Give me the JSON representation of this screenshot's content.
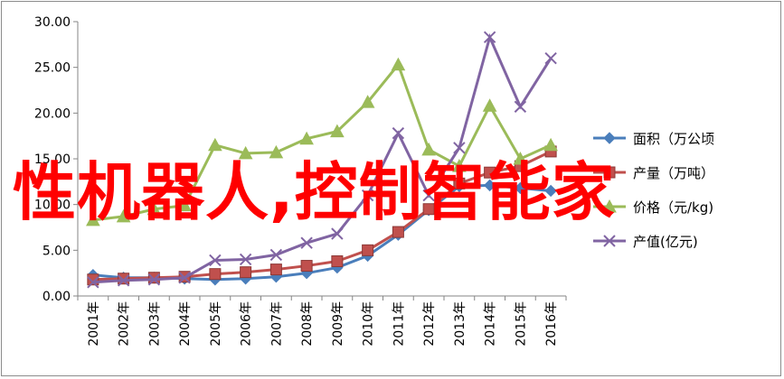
{
  "chart_data": {
    "type": "line",
    "categories": [
      "2001年",
      "2002年",
      "2003年",
      "2004年",
      "2005年",
      "2006年",
      "2007年",
      "2008年",
      "2009年",
      "2010年",
      "2011年",
      "2012年",
      "2013年",
      "2014年",
      "2015年",
      "2016年"
    ],
    "ylim": [
      0,
      30
    ],
    "yticks": [
      "0.00",
      "5.00",
      "10.00",
      "15.00",
      "20.00",
      "25.00",
      "30.00"
    ],
    "series": [
      {
        "name": "面积（万公顷",
        "color": "#4a7ebb",
        "marker": "diamond",
        "values": [
          2.3,
          2.0,
          2.0,
          1.9,
          1.8,
          1.9,
          2.1,
          2.5,
          3.1,
          4.4,
          6.7,
          9.4,
          12.0,
          12.1,
          11.8,
          11.5
        ]
      },
      {
        "name": "产量（万吨）",
        "color": "#c0504d",
        "marker": "square",
        "values": [
          1.8,
          1.9,
          2.0,
          2.1,
          2.4,
          2.6,
          2.9,
          3.3,
          3.8,
          5.0,
          7.0,
          9.5,
          12.3,
          13.5,
          14.2,
          15.8
        ]
      },
      {
        "name": "价格（元/kg)",
        "color": "#9bbb59",
        "marker": "triangle",
        "values": [
          8.3,
          8.7,
          9.5,
          9.9,
          16.5,
          15.6,
          15.7,
          17.2,
          18.0,
          21.2,
          25.3,
          16.0,
          14.2,
          20.8,
          15.0,
          16.5
        ]
      },
      {
        "name": "产值(亿元)",
        "color": "#8064a2",
        "marker": "x",
        "values": [
          1.5,
          1.7,
          1.8,
          2.0,
          3.9,
          4.0,
          4.5,
          5.8,
          6.8,
          11.0,
          17.8,
          11.0,
          16.2,
          28.3,
          20.7,
          26.0
        ]
      }
    ],
    "legend_position": "right",
    "grid": false
  },
  "overlay_text": "性机器人,控制智能家"
}
